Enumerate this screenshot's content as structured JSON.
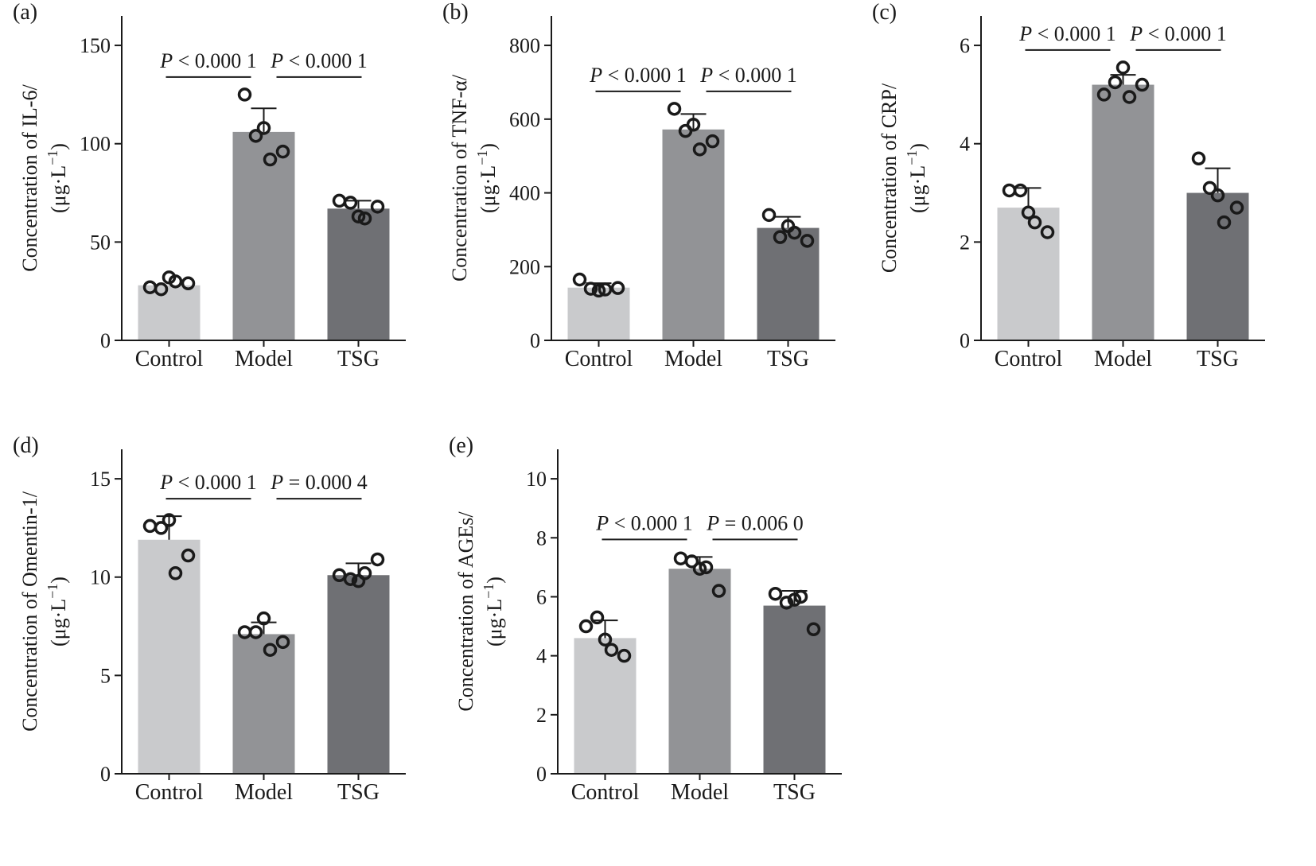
{
  "figure": {
    "panels": [
      {
        "id": "a",
        "label": "(a)",
        "ylabel_line1": "Concentration of IL-6/",
        "ylabel_unit": "(μg·L",
        "ylabel_exp": "−1",
        "ylabel_close": ")"
      },
      {
        "id": "b",
        "label": "(b)",
        "ylabel_line1": "Concentration of TNF-α/",
        "ylabel_unit": "(μg·L",
        "ylabel_exp": "−1",
        "ylabel_close": ")"
      },
      {
        "id": "c",
        "label": "(c)",
        "ylabel_line1": "Concentration of CRP/",
        "ylabel_unit": "(μg·L",
        "ylabel_exp": "−1",
        "ylabel_close": ")"
      },
      {
        "id": "d",
        "label": "(d)",
        "ylabel_line1": "Concentration of Omentin-1/",
        "ylabel_unit": "(μg·L",
        "ylabel_exp": "−1",
        "ylabel_close": ")"
      },
      {
        "id": "e",
        "label": "(e)",
        "ylabel_line1": "Concentration of AGEs/",
        "ylabel_unit": "(μg·L",
        "ylabel_exp": "−1",
        "ylabel_close": ")"
      }
    ]
  },
  "colors": {
    "Control": "#c9cacc",
    "Model": "#929396",
    "TSG": "#6f7074",
    "axis": "#1a1a1a"
  },
  "chart_data": [
    {
      "type": "bar",
      "panel": "(a)",
      "ylabel": "Concentration of IL-6/(μg·L−1)",
      "categories": [
        "Control",
        "Model",
        "TSG"
      ],
      "values": [
        28,
        106,
        67
      ],
      "error": [
        null,
        12,
        4
      ],
      "points": [
        [
          27,
          32,
          29,
          30,
          26
        ],
        [
          125,
          108,
          96,
          92,
          104
        ],
        [
          71,
          63,
          68,
          62,
          70
        ]
      ],
      "ylim": [
        0,
        165
      ],
      "yticks": [
        0,
        50,
        100,
        150
      ],
      "comparisons": [
        {
          "from": 0,
          "to": 1,
          "op": "<",
          "value": "0.000 1"
        },
        {
          "from": 1,
          "to": 2,
          "op": "<",
          "value": "0.000 1"
        }
      ]
    },
    {
      "type": "bar",
      "panel": "(b)",
      "ylabel": "Concentration of TNF-α/(μg·L−1)",
      "categories": [
        "Control",
        "Model",
        "TSG"
      ],
      "values": [
        143,
        572,
        305
      ],
      "error": [
        12,
        42,
        30
      ],
      "points": [
        [
          165,
          135,
          142,
          138,
          140
        ],
        [
          628,
          585,
          540,
          518,
          568
        ],
        [
          340,
          310,
          270,
          292,
          280
        ]
      ],
      "ylim": [
        0,
        880
      ],
      "yticks": [
        0,
        200,
        400,
        600,
        800
      ],
      "comparisons": [
        {
          "from": 0,
          "to": 1,
          "op": "<",
          "value": "0.000 1"
        },
        {
          "from": 1,
          "to": 2,
          "op": "<",
          "value": "0.000 1"
        }
      ]
    },
    {
      "type": "bar",
      "panel": "(c)",
      "ylabel": "Concentration of CRP/(μg·L−1)",
      "categories": [
        "Control",
        "Model",
        "TSG"
      ],
      "values": [
        2.7,
        5.2,
        3.0
      ],
      "error": [
        0.4,
        0.2,
        0.5
      ],
      "points": [
        [
          3.05,
          2.6,
          2.2,
          2.4,
          3.05
        ],
        [
          5.0,
          5.55,
          5.2,
          4.95,
          5.25
        ],
        [
          3.7,
          2.95,
          2.7,
          2.4,
          3.1
        ]
      ],
      "ylim": [
        0,
        6.6
      ],
      "yticks": [
        0,
        2,
        4,
        6
      ],
      "comparisons": [
        {
          "from": 0,
          "to": 1,
          "op": "<",
          "value": "0.000 1"
        },
        {
          "from": 1,
          "to": 2,
          "op": "<",
          "value": "0.000 1"
        }
      ]
    },
    {
      "type": "bar",
      "panel": "(d)",
      "ylabel": "Concentration of Omentin-1/(μg·L−1)",
      "categories": [
        "Control",
        "Model",
        "TSG"
      ],
      "values": [
        11.9,
        7.1,
        10.1
      ],
      "error": [
        1.2,
        0.6,
        0.6
      ],
      "points": [
        [
          12.6,
          12.9,
          11.1,
          10.2,
          12.5
        ],
        [
          7.2,
          7.9,
          6.7,
          6.3,
          7.2
        ],
        [
          10.1,
          9.8,
          10.9,
          10.2,
          9.9
        ]
      ],
      "ylim": [
        0,
        16.5
      ],
      "yticks": [
        0,
        5,
        10,
        15
      ],
      "comparisons": [
        {
          "from": 0,
          "to": 1,
          "op": "<",
          "value": "0.000 1"
        },
        {
          "from": 1,
          "to": 2,
          "op": "=",
          "value": "0.000 4"
        }
      ]
    },
    {
      "type": "bar",
      "panel": "(e)",
      "ylabel": "Concentration of AGEs/(μg·L−1)",
      "categories": [
        "Control",
        "Model",
        "TSG"
      ],
      "values": [
        4.6,
        6.95,
        5.7
      ],
      "error": [
        0.6,
        0.4,
        0.5
      ],
      "points": [
        [
          5.0,
          4.55,
          4.0,
          4.2,
          5.3
        ],
        [
          7.3,
          6.95,
          6.2,
          7.0,
          7.2
        ],
        [
          6.1,
          5.9,
          4.9,
          6.0,
          5.8
        ]
      ],
      "ylim": [
        0,
        11
      ],
      "yticks": [
        0,
        2,
        4,
        6,
        8,
        10
      ],
      "comparisons": [
        {
          "from": 0,
          "to": 1,
          "op": "<",
          "value": "0.000 1"
        },
        {
          "from": 1,
          "to": 2,
          "op": "=",
          "value": "0.006 0"
        }
      ]
    }
  ]
}
